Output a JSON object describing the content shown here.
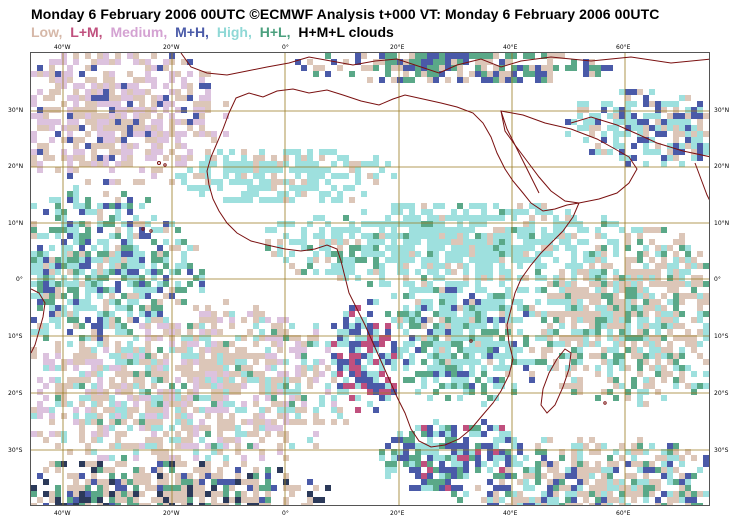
{
  "title": "Monday 6 February 2006 00UTC ©ECMWF Analysis t+000 VT: Monday 6 February 2006 00UTC",
  "legend": [
    {
      "label": "Low,",
      "color": "#d6b8a8"
    },
    {
      "label": "L+M,",
      "color": "#c0507e"
    },
    {
      "label": "Medium,",
      "color": "#d4a2d2"
    },
    {
      "label": "M+H,",
      "color": "#4a5aa8"
    },
    {
      "label": "High,",
      "color": "#8fd8d6"
    },
    {
      "label": "H+L,",
      "color": "#4ba07e"
    },
    {
      "label": "H+M+L clouds",
      "color": "#000000"
    }
  ],
  "colors": {
    "coastline": "#7a1010",
    "grid": "#9a7a20",
    "land": "#ffffff"
  },
  "lon_ticks": [
    "40°W",
    "20°W",
    "0°",
    "20°E",
    "40°E",
    "60°E"
  ],
  "lat_ticks": [
    "30°N",
    "20°N",
    "10°N",
    "0°",
    "10°S",
    "20°S",
    "30°S"
  ]
}
